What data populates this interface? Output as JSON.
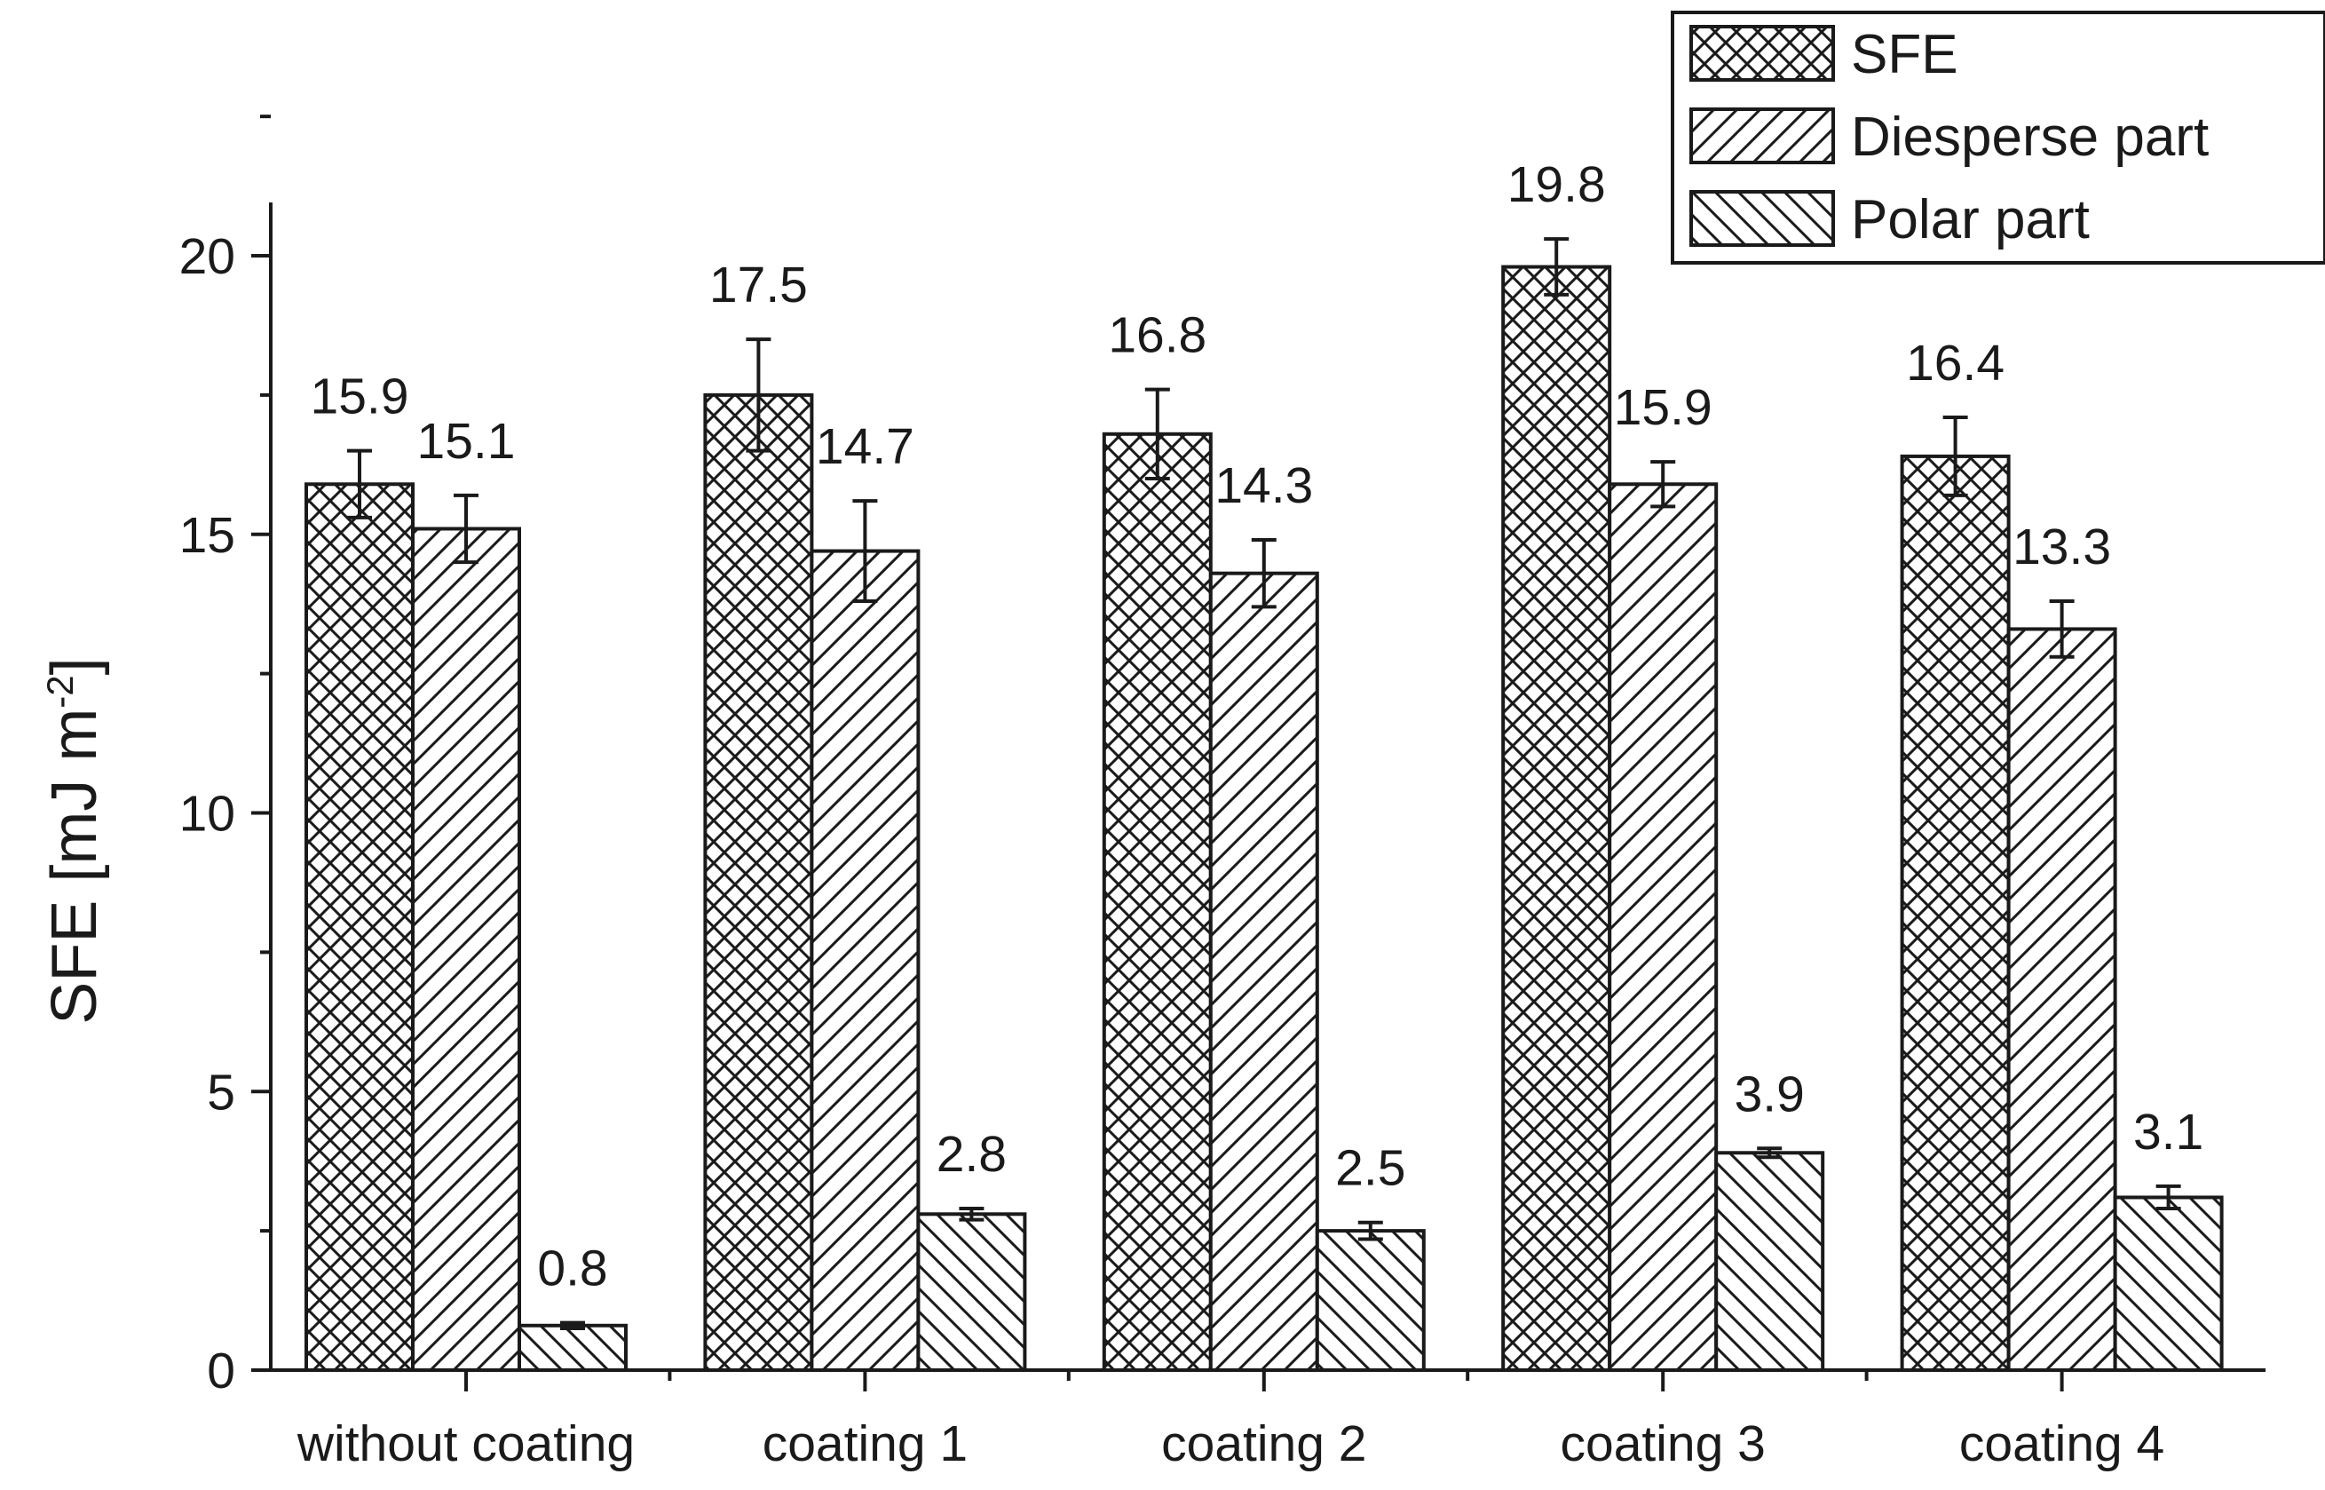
{
  "chart_data": {
    "type": "bar",
    "title": "",
    "xlabel": "",
    "ylabel": "SFE [mJ m-2]",
    "ylabel_parts": {
      "main": "SFE [mJ m",
      "superscript": "-2",
      "close": "]"
    },
    "ylim": [
      0,
      21
    ],
    "yticks": [
      0,
      5,
      10,
      15,
      20
    ],
    "legend_position": "top-right",
    "categories": [
      "without coating",
      "coating 1",
      "coating 2",
      "coating 3",
      "coating 4"
    ],
    "series": [
      {
        "name": "SFE",
        "pattern": "crosshatch",
        "values": [
          15.9,
          17.5,
          16.8,
          19.8,
          16.4
        ],
        "errors": [
          0.6,
          1.0,
          0.8,
          0.5,
          0.7
        ],
        "labels": [
          "15.9",
          "17.5",
          "16.8",
          "19.8",
          "16.4"
        ]
      },
      {
        "name": "Diesperse part",
        "pattern": "forward-diagonal",
        "values": [
          15.1,
          14.7,
          14.3,
          15.9,
          13.3
        ],
        "errors": [
          0.6,
          0.9,
          0.6,
          0.4,
          0.5
        ],
        "labels": [
          "15.1",
          "14.7",
          "14.3",
          "15.9",
          "13.3"
        ]
      },
      {
        "name": "Polar part",
        "pattern": "backward-diagonal",
        "values": [
          0.8,
          2.8,
          2.5,
          3.9,
          3.1
        ],
        "errors": [
          0.05,
          0.1,
          0.15,
          0.08,
          0.2
        ],
        "labels": [
          "0.8",
          "2.8",
          "2.5",
          "3.9",
          "3.1"
        ]
      }
    ],
    "colors": {
      "stroke": "#1a1a1a",
      "fill": "#ffffff"
    }
  }
}
